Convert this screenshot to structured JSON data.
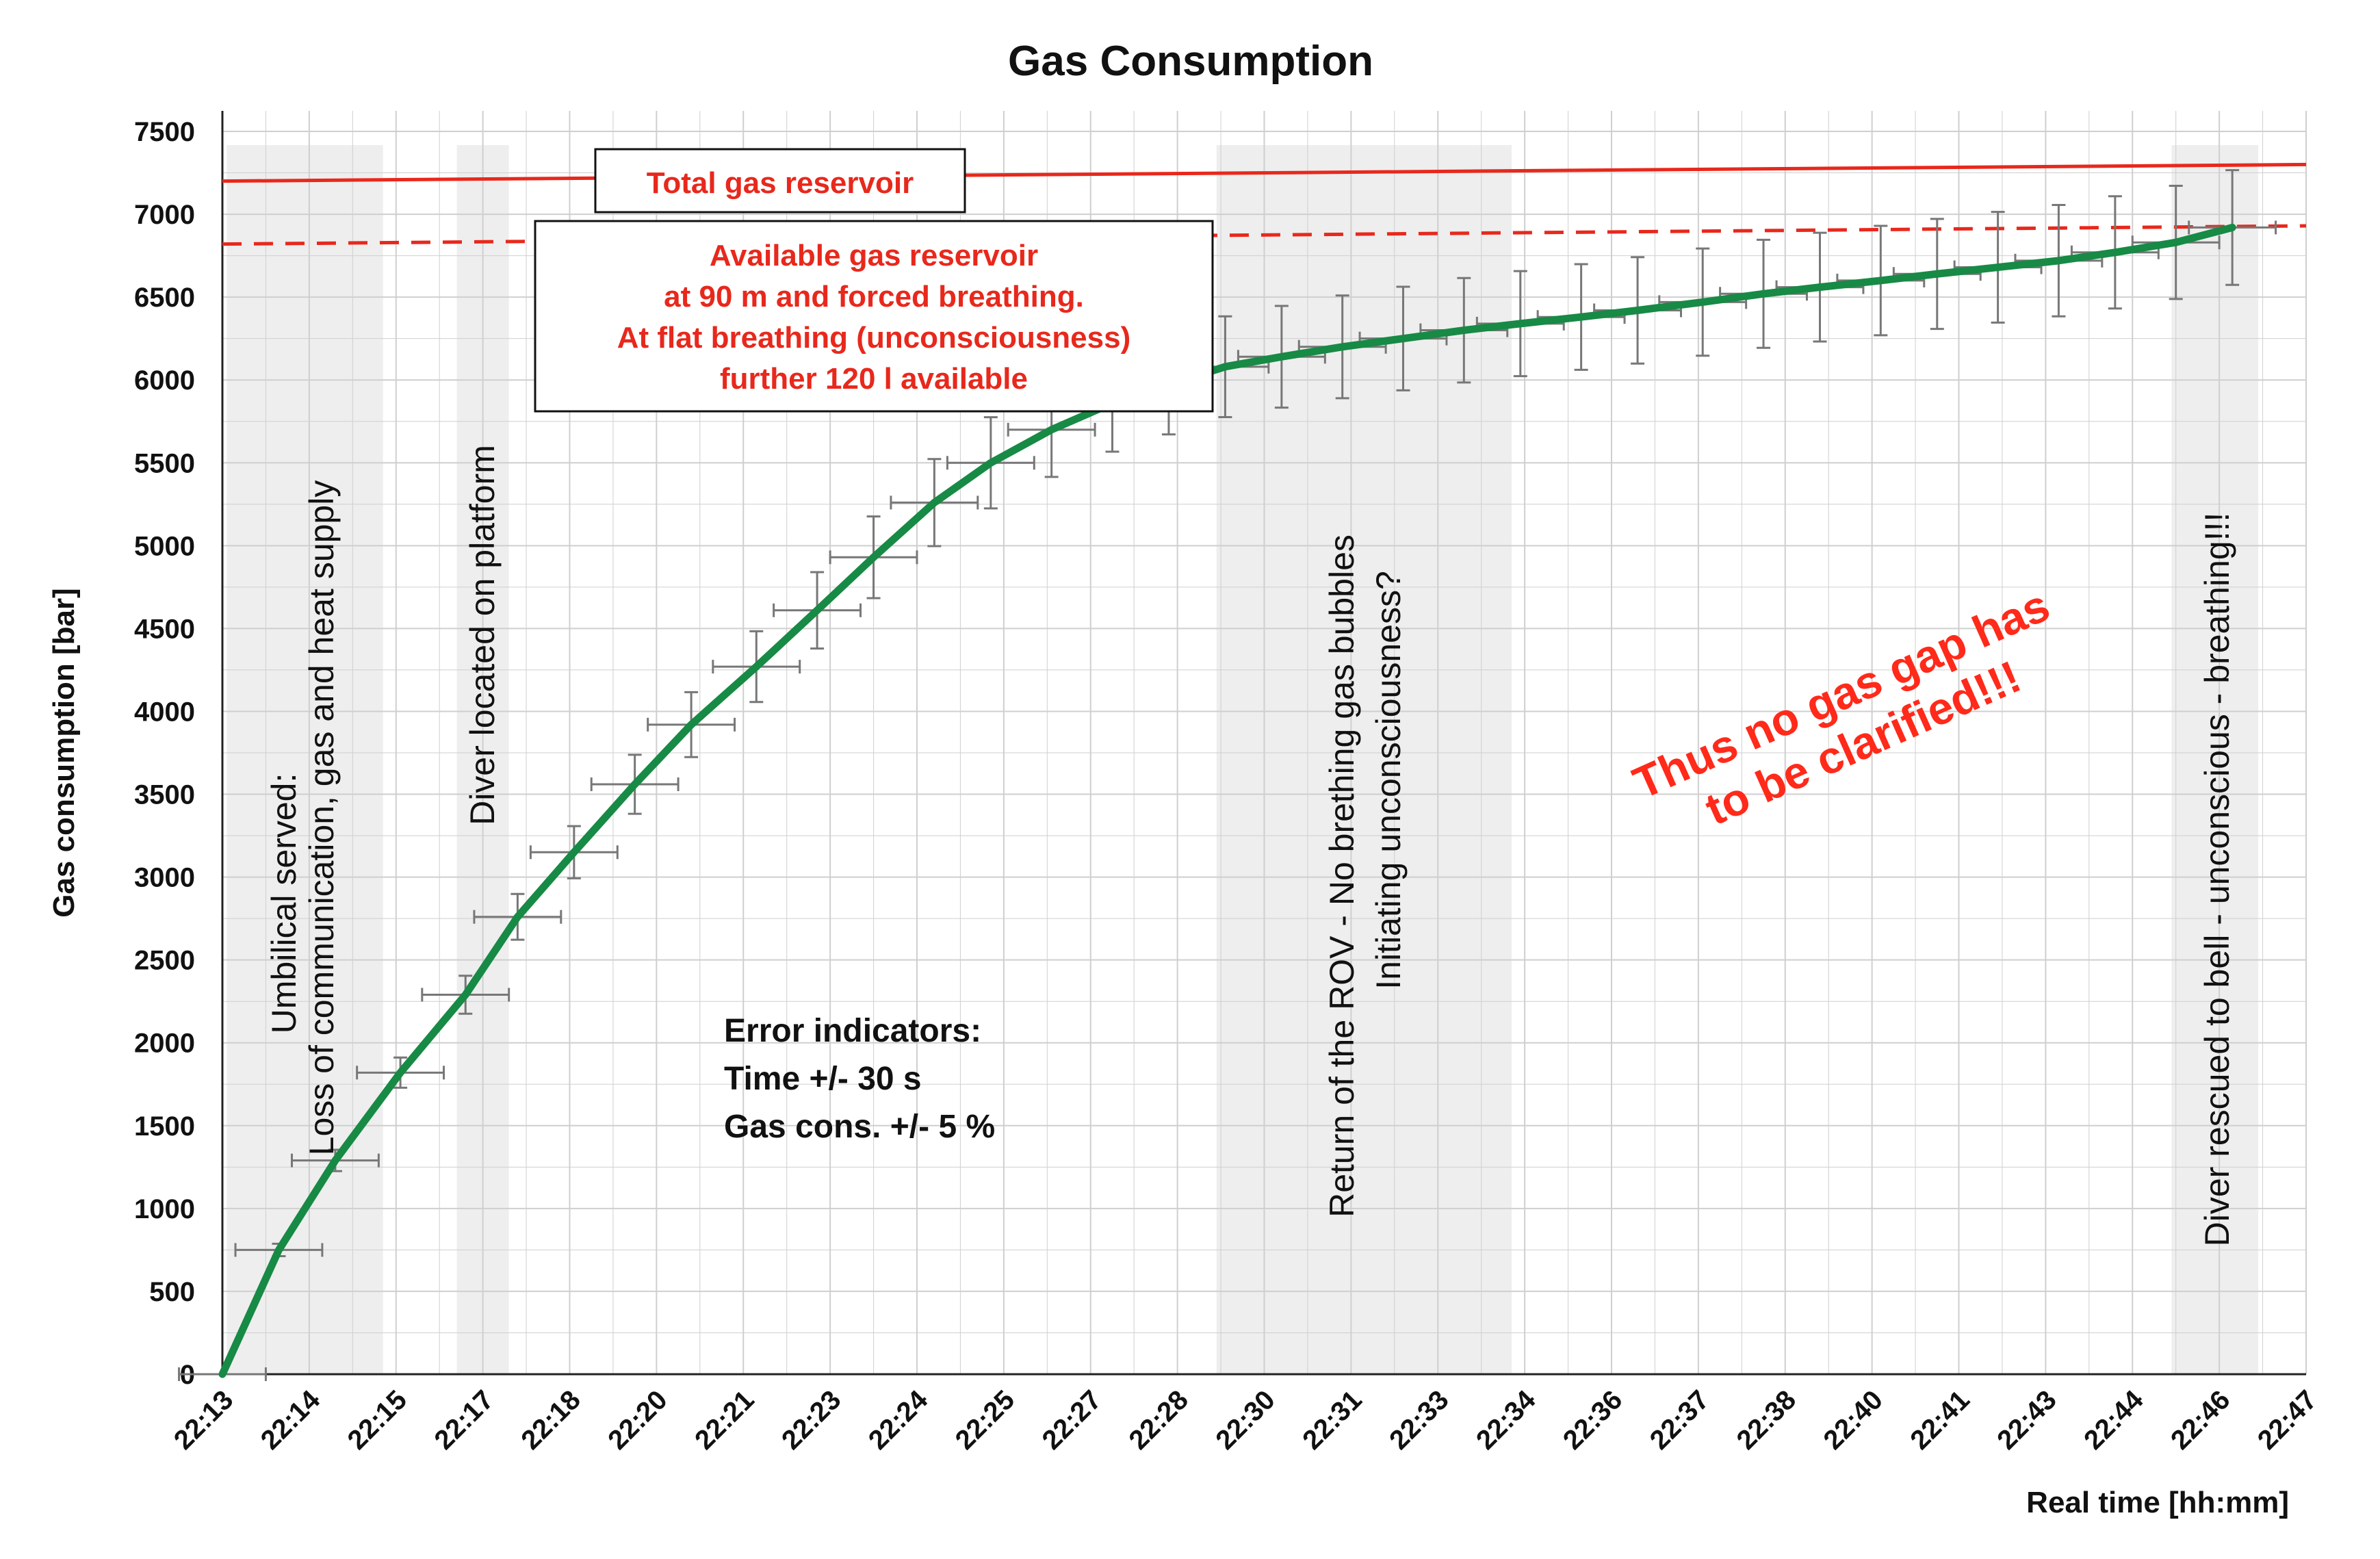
{
  "colors": {
    "series": "#178a45",
    "reservoir": "#e8281c",
    "errorbar": "#777777",
    "grid": "#cfcfcf",
    "shade": "#eeeeee",
    "conclusion": "#ff2a1a"
  },
  "chart_data": {
    "type": "line",
    "title": "Gas Consumption",
    "xlabel": "Real time [hh:mm]",
    "ylabel": "Gas consumption [bar]",
    "ylim": [
      0,
      7500
    ],
    "yticks": [
      0,
      500,
      1000,
      1500,
      2000,
      2500,
      3000,
      3500,
      4000,
      4500,
      5000,
      5500,
      6000,
      6500,
      7000,
      7500
    ],
    "xlim": [
      0,
      24
    ],
    "xtick_labels": [
      "22:13",
      "22:14",
      "22:15",
      "22:17",
      "22:18",
      "22:20",
      "22:21",
      "22:23",
      "22:24",
      "22:25",
      "22:27",
      "22:28",
      "22:30",
      "22:31",
      "22:33",
      "22:34",
      "22:36",
      "22:37",
      "22:38",
      "22:40",
      "22:41",
      "22:43",
      "22:44",
      "22:46",
      "22:47"
    ],
    "grid": true,
    "series": [
      {
        "name": "Gas consumption",
        "x": [
          0,
          0.65,
          1.3,
          2.05,
          2.8,
          3.4,
          4.05,
          4.75,
          5.4,
          6.15,
          6.85,
          7.5,
          8.2,
          8.85,
          9.55,
          10.25,
          10.9,
          11.55,
          12.2,
          12.9,
          13.6,
          14.3,
          14.95,
          15.65,
          16.3,
          17.05,
          17.75,
          18.4,
          19.1,
          19.75,
          20.45,
          21.15,
          21.8,
          22.5,
          23.15
        ],
        "y": [
          0,
          750,
          1290,
          1820,
          2290,
          2760,
          3150,
          3560,
          3920,
          4270,
          4610,
          4930,
          5260,
          5500,
          5700,
          5860,
          5970,
          6080,
          6140,
          6200,
          6250,
          6300,
          6340,
          6380,
          6420,
          6470,
          6520,
          6560,
          6600,
          6640,
          6680,
          6720,
          6770,
          6830,
          6920
        ],
        "x_error": 0.5,
        "y_error_percent": 5
      }
    ],
    "reference_lines": [
      {
        "name": "Total gas reservoir",
        "y_start": 7200,
        "y_end": 7300,
        "style": "solid"
      },
      {
        "name": "Available gas reservoir",
        "y_start": 6820,
        "y_end": 6930,
        "style": "dashed"
      }
    ],
    "annotations": {
      "total_reservoir_label": "Total gas reservoir",
      "available_reservoir_lines": [
        "Available gas reservoir",
        "at 90 m and forced breathing.",
        "At  flat breathing (unconsciousness)",
        "further 120 l available"
      ],
      "umbilical_lines": [
        "Umbilical served:",
        "Loss of communication, gas and heat supply"
      ],
      "diver_platform": "Diver located on platform",
      "rov_lines": [
        "Return of the ROV - No brething gas bubbles",
        "Initiating unconsciousness?"
      ],
      "diver_rescued": "Diver rescued to bell - unconscious - breathing!!!",
      "error_lines": [
        "Error indicators:",
        "Time +/- 30 s",
        "Gas cons. +/- 5 %"
      ],
      "conclusion_lines": [
        "Thus no gas gap has",
        "to be clarified!!!"
      ]
    }
  }
}
